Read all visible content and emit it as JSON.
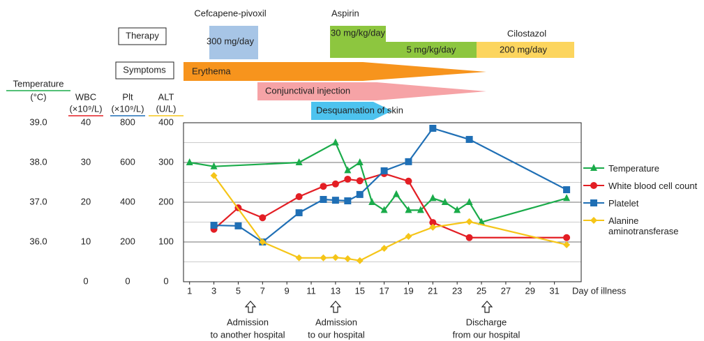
{
  "therapy": {
    "label": "Therapy",
    "cefcapene": {
      "name": "Cefcapene-pivoxil",
      "dose": "300 mg/day"
    },
    "aspirin": {
      "name": "Aspirin",
      "doses": [
        "30 mg/kg/day",
        "5 mg/kg/day"
      ]
    },
    "cilostazol": {
      "name": "Cilostazol",
      "dose": "200 mg/day"
    }
  },
  "symptoms": {
    "label": "Symptoms",
    "items": [
      "Erythema",
      "Conjunctival injection",
      "Desquamation of skin"
    ]
  },
  "chart_data": {
    "type": "line",
    "xlabel": "Day of illness",
    "xlim": [
      0.5,
      33.2
    ],
    "xticks": [
      1,
      3,
      5,
      7,
      9,
      11,
      13,
      15,
      17,
      19,
      21,
      23,
      25,
      27,
      29,
      31
    ],
    "grid": true,
    "axes": [
      {
        "name": "Temperature",
        "unit": "(°C)",
        "color": "#1aab4a",
        "ylim": [
          35,
          39
        ],
        "yticks": [
          {
            "value": 36,
            "label": "36.0"
          },
          {
            "value": 37,
            "label": "37.0"
          },
          {
            "value": 38,
            "label": "38.0"
          },
          {
            "value": 39,
            "label": "39.0"
          }
        ]
      },
      {
        "name": "WBC",
        "unit": "(×10⁹/L)",
        "color": "#e31e24",
        "ylim": [
          0,
          40
        ],
        "yticks": [
          0,
          10,
          20,
          30,
          40
        ]
      },
      {
        "name": "Plt",
        "unit": "(×10⁹/L)",
        "color": "#1f6fb5",
        "ylim": [
          0,
          800
        ],
        "yticks": [
          0,
          200,
          400,
          600,
          800
        ]
      },
      {
        "name": "ALT",
        "unit": "(U/L)",
        "color": "#f5c518",
        "ylim": [
          0,
          400
        ],
        "yticks": [
          0,
          100,
          200,
          300,
          400
        ]
      }
    ],
    "series": [
      {
        "name": "Temperature",
        "color": "#1aab4a",
        "marker": "triangle",
        "axis": 0,
        "x": [
          1,
          3,
          10,
          13,
          14,
          15,
          16,
          17,
          18,
          19,
          20,
          21,
          22,
          23,
          24,
          25,
          32
        ],
        "values": [
          38.0,
          37.9,
          38.0,
          38.5,
          37.8,
          38.0,
          37.0,
          36.8,
          37.2,
          36.8,
          36.8,
          37.1,
          37.0,
          36.8,
          37.0,
          36.5,
          37.1
        ]
      },
      {
        "name": "White blood cell count",
        "color": "#e31e24",
        "marker": "circle",
        "axis": 1,
        "x": [
          3,
          5,
          7,
          10,
          12,
          13,
          14,
          15,
          17,
          19,
          21,
          24,
          32
        ],
        "values": [
          13.2,
          18.6,
          16.1,
          21.4,
          24.0,
          24.6,
          25.8,
          25.4,
          27.2,
          25.3,
          14.9,
          11.1,
          11.1
        ]
      },
      {
        "name": "Platelet",
        "color": "#1f6fb5",
        "marker": "square",
        "axis": 2,
        "x": [
          3,
          5,
          7,
          10,
          12,
          13,
          14,
          15,
          17,
          19,
          21,
          24,
          32
        ],
        "values": [
          284,
          281,
          200,
          347,
          414,
          410,
          407,
          439,
          558,
          604,
          772,
          716,
          463
        ]
      },
      {
        "name": "Alanine aminotransferase",
        "color": "#f5c518",
        "marker": "diamond",
        "axis": 3,
        "x": [
          3,
          7,
          10,
          12,
          13,
          14,
          15,
          17,
          19,
          21,
          24,
          32
        ],
        "values": [
          267,
          100,
          60,
          60,
          61,
          58,
          53,
          84,
          114,
          137,
          151,
          93
        ]
      }
    ],
    "annotations": [
      [
        "Admission",
        "to another hospital"
      ],
      [
        "Admission",
        "to our hospital"
      ],
      [
        "Discharge",
        "from our hospital"
      ]
    ]
  }
}
